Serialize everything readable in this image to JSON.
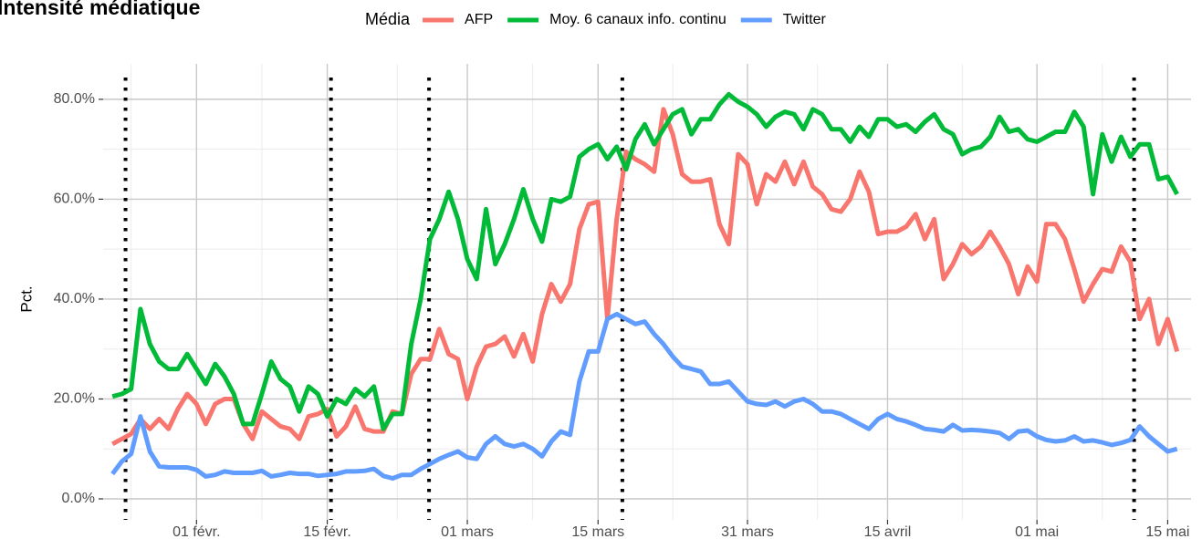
{
  "chart_data": {
    "type": "line",
    "title": "Intensité médiatique",
    "ylabel": "Pct.",
    "legend_title": "Média",
    "legend": "top",
    "grid": true,
    "x": [
      0,
      1,
      2,
      3,
      4,
      5,
      6,
      7,
      8,
      9,
      10,
      11,
      12,
      13,
      14,
      15,
      16,
      17,
      18,
      19,
      20,
      21,
      22,
      23,
      24,
      25,
      26,
      27,
      28,
      29,
      30,
      31,
      32,
      33,
      34,
      35,
      36,
      37,
      38,
      39,
      40,
      41,
      42,
      43,
      44,
      45,
      46,
      47,
      48,
      49,
      50,
      51,
      52,
      53,
      54,
      55,
      56,
      57,
      58,
      59,
      60,
      61,
      62,
      63,
      64,
      65,
      66,
      67,
      68,
      69,
      70,
      71,
      72,
      73,
      74,
      75,
      76,
      77,
      78,
      79,
      80,
      81,
      82,
      83,
      84,
      85,
      86,
      87,
      88,
      89,
      90,
      91,
      92,
      93,
      94,
      95,
      96,
      97,
      98,
      99,
      100,
      101,
      102,
      103,
      104,
      105,
      106,
      107,
      108,
      109,
      110,
      111,
      112,
      113,
      114
    ],
    "xlim": [
      -1,
      115.5
    ],
    "xticks": [
      {
        "value": 9,
        "label": "01 févr."
      },
      {
        "value": 23,
        "label": "15 févr."
      },
      {
        "value": 38,
        "label": "01 mars"
      },
      {
        "value": 52,
        "label": "15 mars"
      },
      {
        "value": 68,
        "label": "31 mars"
      },
      {
        "value": 83,
        "label": "15 avril"
      },
      {
        "value": 99,
        "label": "01 mai"
      },
      {
        "value": 113,
        "label": "15 mai"
      }
    ],
    "ylim": [
      -4.2,
      87.1
    ],
    "yticks": [
      {
        "value": 0,
        "label": "0.0%"
      },
      {
        "value": 20,
        "label": "20.0%"
      },
      {
        "value": 40,
        "label": "40.0%"
      },
      {
        "value": 60,
        "label": "60.0%"
      },
      {
        "value": 80,
        "label": "80.0%"
      }
    ],
    "vlines": [
      1.4,
      23.4,
      33.9,
      54.6,
      109.4
    ],
    "series": [
      {
        "name": "AFP",
        "color": "#F8766D",
        "values": [
          11,
          12,
          13,
          16,
          14,
          16,
          14,
          18,
          21,
          19,
          15,
          19,
          20,
          20,
          15,
          12,
          17.5,
          16,
          14.5,
          14,
          12,
          16.5,
          17,
          18,
          12.5,
          14.5,
          18.5,
          14,
          13.5,
          13.5,
          17.5,
          17,
          25,
          28,
          28,
          34,
          29,
          28,
          20,
          26.5,
          30.5,
          31,
          32.5,
          28.5,
          33,
          27.5,
          37,
          43,
          39.5,
          43,
          54,
          59,
          59.5,
          36,
          56,
          69.5,
          68,
          67,
          65.5,
          78,
          73,
          65,
          63.5,
          63.5,
          64,
          55,
          51,
          69,
          67,
          59,
          65,
          63.5,
          67.5,
          63,
          67.5,
          62.5,
          61,
          58,
          57.5,
          60,
          65.5,
          61.5,
          53,
          53.5,
          53.5,
          54.5,
          57,
          52,
          56,
          44,
          47,
          51,
          49,
          50.5,
          53.5,
          50.5,
          47,
          41,
          46.5,
          43.5,
          55,
          55,
          52,
          46,
          39.5,
          43,
          46,
          45.5,
          50.5,
          47.5,
          36,
          40,
          31,
          36,
          29.5
        ]
      },
      {
        "name": "Moy. 6 canaux info. continu",
        "color": "#00BA38",
        "values": [
          20.5,
          21,
          22,
          38,
          31,
          27.5,
          26,
          26,
          29,
          26,
          23,
          27,
          24.5,
          21,
          15,
          15,
          21,
          27.5,
          24,
          22.5,
          17.5,
          22.5,
          21,
          16.5,
          20,
          19,
          22,
          20.5,
          22.5,
          14,
          17,
          17,
          31,
          40,
          52,
          56,
          61.5,
          56,
          48,
          44,
          58,
          47,
          51,
          56,
          62,
          56,
          51.5,
          60,
          59.5,
          60.5,
          68.5,
          70,
          71,
          68,
          70.5,
          66,
          72,
          75,
          71,
          74,
          77,
          78,
          73,
          76,
          76,
          79,
          81,
          79.5,
          78.5,
          77,
          74.5,
          76.5,
          77.5,
          77,
          74,
          78,
          77,
          74,
          74,
          71.5,
          74.5,
          72.5,
          76,
          76,
          74.5,
          75,
          73.5,
          75.5,
          77,
          74,
          73,
          69,
          70,
          70.5,
          72.5,
          76.5,
          73.5,
          74,
          72,
          71.5,
          72.5,
          73.5,
          73.5,
          77.5,
          74.5,
          61,
          73,
          67.5,
          72.5,
          68.5,
          71,
          71,
          64,
          64.5,
          61
        ]
      },
      {
        "name": "Twitter",
        "color": "#619CFF",
        "values": [
          5,
          7.5,
          9,
          16.5,
          9.5,
          6.5,
          6.3,
          6.3,
          6.3,
          5.8,
          4.5,
          4.8,
          5.5,
          5.2,
          5.2,
          5.2,
          5.6,
          4.5,
          4.8,
          5.2,
          5,
          5,
          4.6,
          4.8,
          5,
          5.5,
          5.5,
          5.6,
          6,
          4.6,
          4.1,
          4.8,
          4.8,
          6,
          7,
          8,
          8.8,
          9.5,
          8.3,
          8,
          11,
          12.5,
          11,
          10.5,
          11,
          10,
          8.5,
          11.5,
          13.5,
          12.8,
          23.5,
          29.5,
          29.5,
          36,
          37,
          36,
          35,
          35.5,
          33,
          31,
          28.5,
          26.5,
          26,
          25.5,
          23,
          23,
          23.5,
          21.5,
          19.5,
          19,
          18.8,
          19.5,
          18.5,
          19.5,
          20,
          19,
          17.5,
          17.5,
          17,
          16,
          15,
          14,
          16,
          17,
          16,
          15.5,
          14.8,
          14,
          13.8,
          13.5,
          14.8,
          13.7,
          13.8,
          13.7,
          13.5,
          13.2,
          12,
          13.5,
          13.7,
          12.5,
          11.8,
          11.5,
          11.7,
          12.5,
          11.5,
          11.7,
          11.3,
          10.8,
          11.2,
          11.8,
          14.5,
          12.5,
          11,
          9.5,
          10
        ]
      }
    ]
  }
}
